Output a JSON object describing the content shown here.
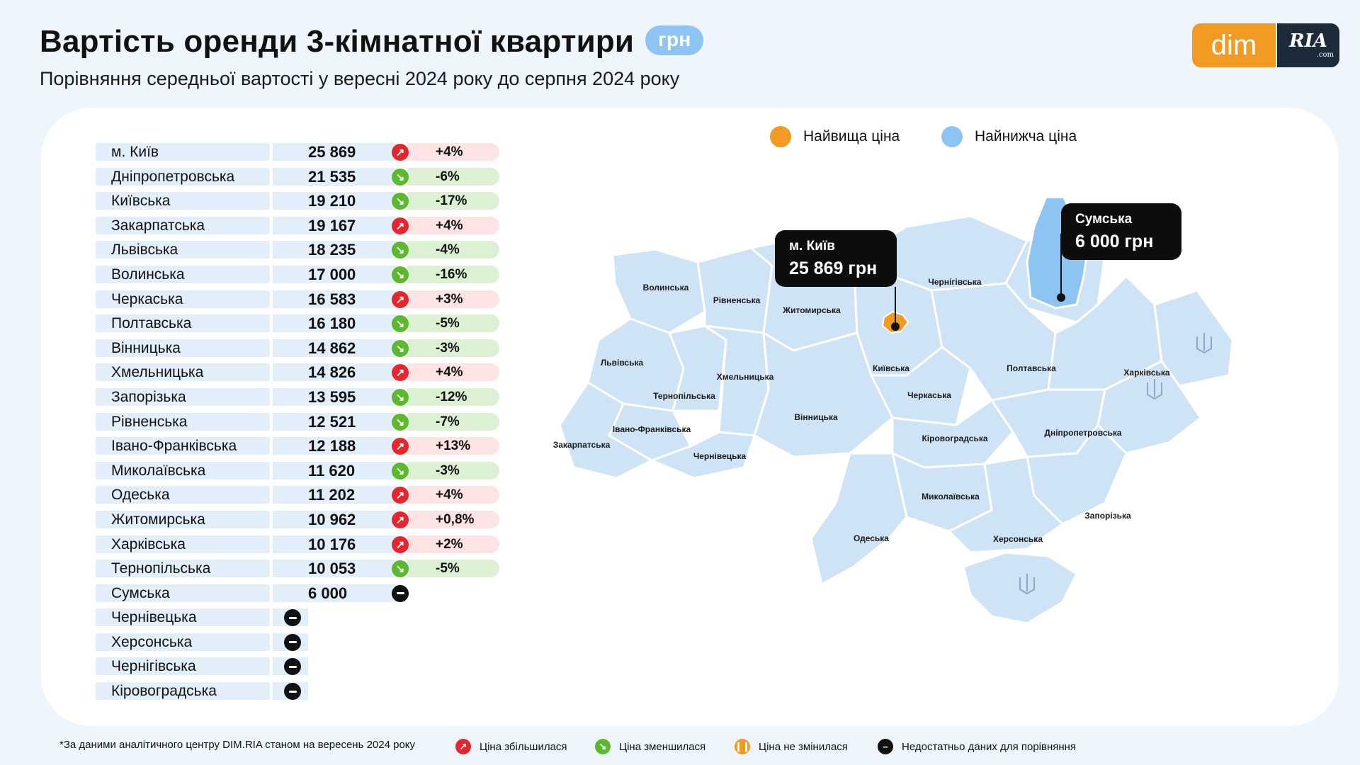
{
  "header": {
    "title": "Вартість оренди 3-кімнатної квартири",
    "unit_badge": "грн",
    "subtitle": "Порівняння середньої вартості у вересні 2024 року до серпня 2024 року"
  },
  "logo": {
    "left": "dim",
    "right": "RIA",
    "right_small": ".com"
  },
  "colors": {
    "highest": "#f29a22",
    "lowest": "#8ec4f2",
    "increase": "#e5262c",
    "decrease": "#5cb82d",
    "unchanged": "#f29a22",
    "no_data": "#111111",
    "map_region": "#cfe3f7"
  },
  "legend": {
    "highest_label": "Найвища ціна",
    "lowest_label": "Найнижча ціна"
  },
  "icons": {
    "increase": "arrow-up-right-icon",
    "decrease": "arrow-down-right-icon",
    "unchanged": "pause-icon",
    "no_data": "minus-icon",
    "emblem": "trident-icon"
  },
  "chart_data": {
    "type": "table",
    "columns": [
      "region",
      "price_uah",
      "change"
    ],
    "rows": [
      {
        "region": "м. Київ",
        "price": 25869,
        "price_label": "25 869",
        "change": "+4%",
        "dir": "up"
      },
      {
        "region": "Дніпропетровська",
        "price": 21535,
        "price_label": "21 535",
        "change": "-6%",
        "dir": "down"
      },
      {
        "region": "Київська",
        "price": 19210,
        "price_label": "19 210",
        "change": "-17%",
        "dir": "down"
      },
      {
        "region": "Закарпатська",
        "price": 19167,
        "price_label": "19 167",
        "change": "+4%",
        "dir": "up"
      },
      {
        "region": "Львівська",
        "price": 18235,
        "price_label": "18 235",
        "change": "-4%",
        "dir": "down"
      },
      {
        "region": "Волинська",
        "price": 17000,
        "price_label": "17 000",
        "change": "-16%",
        "dir": "down"
      },
      {
        "region": "Черкаська",
        "price": 16583,
        "price_label": "16 583",
        "change": "+3%",
        "dir": "up"
      },
      {
        "region": "Полтавська",
        "price": 16180,
        "price_label": "16 180",
        "change": "-5%",
        "dir": "down"
      },
      {
        "region": "Вінницька",
        "price": 14862,
        "price_label": "14 862",
        "change": "-3%",
        "dir": "down"
      },
      {
        "region": "Хмельницька",
        "price": 14826,
        "price_label": "14 826",
        "change": "+4%",
        "dir": "up"
      },
      {
        "region": "Запорізька",
        "price": 13595,
        "price_label": "13 595",
        "change": "-12%",
        "dir": "down"
      },
      {
        "region": "Рівненська",
        "price": 12521,
        "price_label": "12 521",
        "change": "-7%",
        "dir": "down"
      },
      {
        "region": "Івано-Франківська",
        "price": 12188,
        "price_label": "12 188",
        "change": "+13%",
        "dir": "up"
      },
      {
        "region": "Миколаївська",
        "price": 11620,
        "price_label": "11 620",
        "change": "-3%",
        "dir": "down"
      },
      {
        "region": "Одеська",
        "price": 11202,
        "price_label": "11 202",
        "change": "+4%",
        "dir": "up"
      },
      {
        "region": "Житомирська",
        "price": 10962,
        "price_label": "10 962",
        "change": "+0,8%",
        "dir": "up"
      },
      {
        "region": "Харківська",
        "price": 10176,
        "price_label": "10 176",
        "change": "+2%",
        "dir": "up"
      },
      {
        "region": "Тернопільська",
        "price": 10053,
        "price_label": "10 053",
        "change": "-5%",
        "dir": "down"
      },
      {
        "region": "Сумська",
        "price": 6000,
        "price_label": "6 000",
        "change": "",
        "dir": "none"
      },
      {
        "region": "Чернівецька",
        "price": null,
        "price_label": "",
        "change": "",
        "dir": "none"
      },
      {
        "region": "Херсонська",
        "price": null,
        "price_label": "",
        "change": "",
        "dir": "none"
      },
      {
        "region": "Чернігівська",
        "price": null,
        "price_label": "",
        "change": "",
        "dir": "none"
      },
      {
        "region": "Кіровоградська",
        "price": null,
        "price_label": "",
        "change": "",
        "dir": "none"
      }
    ]
  },
  "map": {
    "labels": [
      "Волинська",
      "Рівненська",
      "Житомирська",
      "Чернігівська",
      "Львівська",
      "Хмельницька",
      "Тернопільська",
      "Київська",
      "Черкаська",
      "Полтавська",
      "Харківська",
      "Вінницька",
      "Івано-Франківська",
      "Закарпатська",
      "Чернівецька",
      "Кіровоградська",
      "Дніпропетровська",
      "Миколаївська",
      "Одеська",
      "Запорізька",
      "Херсонська"
    ],
    "callout_high": {
      "name": "м. Київ",
      "value": "25 869 грн"
    },
    "callout_low": {
      "name": "Сумська",
      "value": "6 000 грн"
    }
  },
  "footer": {
    "note": "*За даними аналітичного центру DIM.RIA станом на вересень 2024 року",
    "increase": "Ціна збільшилася",
    "decrease": "Ціна зменшилася",
    "unchanged": "Ціна не змінилася",
    "no_data": "Недостатньо даних для порівняння"
  }
}
